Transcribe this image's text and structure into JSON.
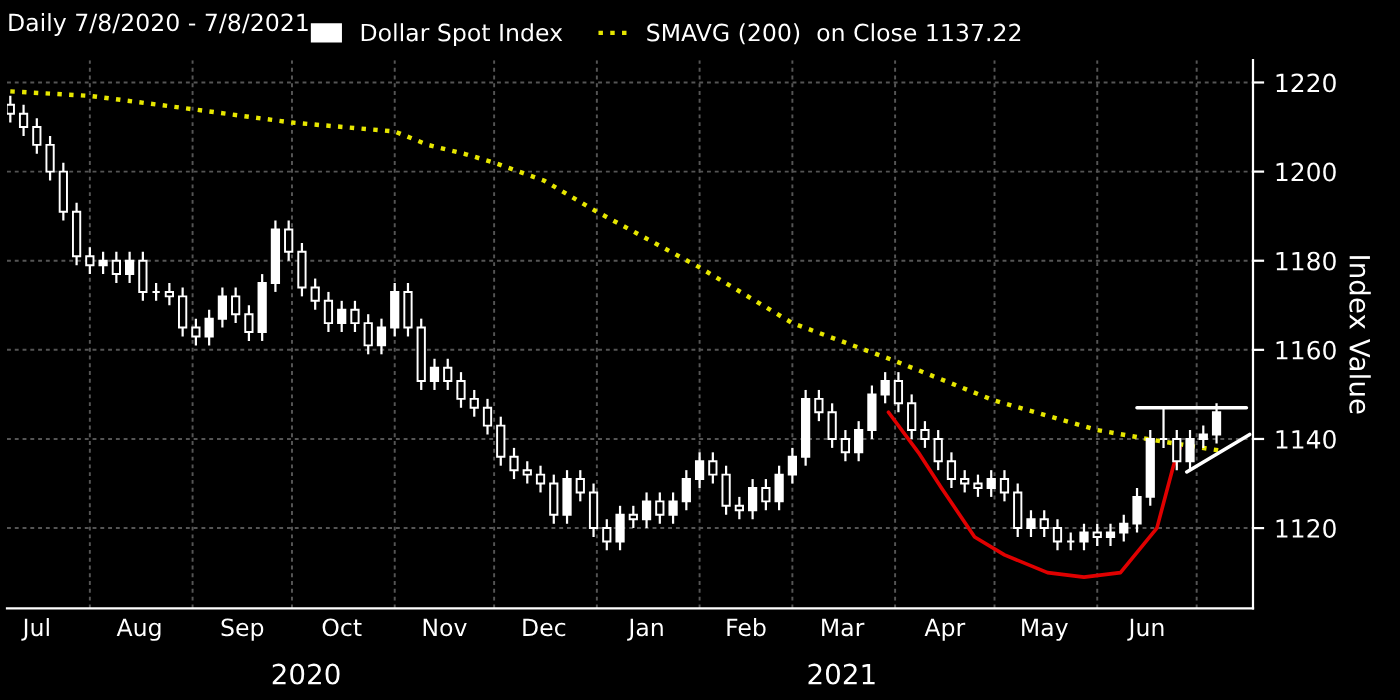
{
  "chart_data": {
    "type": "candlestick",
    "title": "Daily 7/8/2020 - 7/8/2021",
    "ylabel": "Index Value",
    "x": [
      "2020-07-08",
      "2020-07-12",
      "2020-07-16",
      "2020-07-20",
      "2020-07-24",
      "2020-07-28",
      "2020-08-01",
      "2020-08-05",
      "2020-08-09",
      "2020-08-13",
      "2020-08-17",
      "2020-08-21",
      "2020-08-25",
      "2020-08-29",
      "2020-09-02",
      "2020-09-06",
      "2020-09-10",
      "2020-09-14",
      "2020-09-18",
      "2020-09-22",
      "2020-09-26",
      "2020-09-30",
      "2020-10-04",
      "2020-10-08",
      "2020-10-12",
      "2020-10-16",
      "2020-10-20",
      "2020-10-24",
      "2020-10-28",
      "2020-11-01",
      "2020-11-05",
      "2020-11-09",
      "2020-11-13",
      "2020-11-17",
      "2020-11-21",
      "2020-11-25",
      "2020-11-29",
      "2020-12-03",
      "2020-12-07",
      "2020-12-11",
      "2020-12-15",
      "2020-12-19",
      "2020-12-23",
      "2020-12-27",
      "2020-12-31",
      "2021-01-04",
      "2021-01-08",
      "2021-01-12",
      "2021-01-16",
      "2021-01-20",
      "2021-01-24",
      "2021-01-28",
      "2021-02-01",
      "2021-02-05",
      "2021-02-09",
      "2021-02-13",
      "2021-02-17",
      "2021-02-21",
      "2021-02-25",
      "2021-03-01",
      "2021-03-05",
      "2021-03-09",
      "2021-03-13",
      "2021-03-17",
      "2021-03-21",
      "2021-03-25",
      "2021-03-29",
      "2021-04-02",
      "2021-04-06",
      "2021-04-10",
      "2021-04-14",
      "2021-04-18",
      "2021-04-22",
      "2021-04-26",
      "2021-04-30",
      "2021-05-04",
      "2021-05-08",
      "2021-05-12",
      "2021-05-16",
      "2021-05-20",
      "2021-05-24",
      "2021-05-28",
      "2021-06-01",
      "2021-06-05",
      "2021-06-09",
      "2021-06-13",
      "2021-06-17",
      "2021-06-21",
      "2021-06-25",
      "2021-06-29",
      "2021-07-03",
      "2021-07-07"
    ],
    "series": [
      {
        "name": "Dollar Spot Index",
        "color": "#ffffff",
        "ohlc": [
          [
            1215,
            1217,
            1211,
            1213
          ],
          [
            1213,
            1215,
            1208,
            1210
          ],
          [
            1210,
            1212,
            1204,
            1206
          ],
          [
            1206,
            1208,
            1198,
            1200
          ],
          [
            1200,
            1202,
            1189,
            1191
          ],
          [
            1191,
            1193,
            1179,
            1181
          ],
          [
            1181,
            1183,
            1177,
            1179
          ],
          [
            1179,
            1182,
            1177,
            1180
          ],
          [
            1180,
            1182,
            1175,
            1177
          ],
          [
            1177,
            1182,
            1175,
            1180
          ],
          [
            1180,
            1182,
            1171,
            1173
          ],
          [
            1173,
            1175,
            1171,
            1173
          ],
          [
            1173,
            1175,
            1170,
            1172
          ],
          [
            1172,
            1174,
            1163,
            1165
          ],
          [
            1165,
            1167,
            1161,
            1163
          ],
          [
            1163,
            1169,
            1161,
            1167
          ],
          [
            1167,
            1174,
            1165,
            1172
          ],
          [
            1172,
            1174,
            1166,
            1168
          ],
          [
            1168,
            1170,
            1162,
            1164
          ],
          [
            1164,
            1177,
            1162,
            1175
          ],
          [
            1175,
            1189,
            1173,
            1187
          ],
          [
            1187,
            1189,
            1180,
            1182
          ],
          [
            1182,
            1184,
            1172,
            1174
          ],
          [
            1174,
            1176,
            1169,
            1171
          ],
          [
            1171,
            1173,
            1164,
            1166
          ],
          [
            1166,
            1171,
            1164,
            1169
          ],
          [
            1169,
            1171,
            1164,
            1166
          ],
          [
            1166,
            1168,
            1159,
            1161
          ],
          [
            1161,
            1167,
            1159,
            1165
          ],
          [
            1165,
            1175,
            1163,
            1173
          ],
          [
            1173,
            1175,
            1163,
            1165
          ],
          [
            1165,
            1167,
            1151,
            1153
          ],
          [
            1153,
            1158,
            1151,
            1156
          ],
          [
            1156,
            1158,
            1151,
            1153
          ],
          [
            1153,
            1155,
            1147,
            1149
          ],
          [
            1149,
            1151,
            1145,
            1147
          ],
          [
            1147,
            1149,
            1141,
            1143
          ],
          [
            1143,
            1145,
            1134,
            1136
          ],
          [
            1136,
            1138,
            1131,
            1133
          ],
          [
            1133,
            1135,
            1130,
            1132
          ],
          [
            1132,
            1134,
            1128,
            1130
          ],
          [
            1130,
            1132,
            1121,
            1123
          ],
          [
            1123,
            1133,
            1121,
            1131
          ],
          [
            1131,
            1133,
            1126,
            1128
          ],
          [
            1128,
            1130,
            1118,
            1120
          ],
          [
            1120,
            1122,
            1115,
            1117
          ],
          [
            1117,
            1125,
            1115,
            1123
          ],
          [
            1123,
            1125,
            1120,
            1122
          ],
          [
            1122,
            1128,
            1120,
            1126
          ],
          [
            1126,
            1128,
            1121,
            1123
          ],
          [
            1123,
            1128,
            1121,
            1126
          ],
          [
            1126,
            1133,
            1124,
            1131
          ],
          [
            1131,
            1137,
            1129,
            1135
          ],
          [
            1135,
            1137,
            1130,
            1132
          ],
          [
            1132,
            1134,
            1123,
            1125
          ],
          [
            1125,
            1127,
            1122,
            1124
          ],
          [
            1124,
            1131,
            1122,
            1129
          ],
          [
            1129,
            1131,
            1124,
            1126
          ],
          [
            1126,
            1134,
            1124,
            1132
          ],
          [
            1132,
            1138,
            1130,
            1136
          ],
          [
            1136,
            1151,
            1134,
            1149
          ],
          [
            1149,
            1151,
            1144,
            1146
          ],
          [
            1146,
            1148,
            1138,
            1140
          ],
          [
            1140,
            1142,
            1135,
            1137
          ],
          [
            1137,
            1144,
            1135,
            1142
          ],
          [
            1142,
            1152,
            1140,
            1150
          ],
          [
            1150,
            1155,
            1148,
            1153
          ],
          [
            1153,
            1155,
            1146,
            1148
          ],
          [
            1148,
            1150,
            1140,
            1142
          ],
          [
            1142,
            1144,
            1138,
            1140
          ],
          [
            1140,
            1142,
            1133,
            1135
          ],
          [
            1135,
            1137,
            1129,
            1131
          ],
          [
            1131,
            1133,
            1128,
            1130
          ],
          [
            1130,
            1132,
            1127,
            1129
          ],
          [
            1129,
            1133,
            1127,
            1131
          ],
          [
            1131,
            1133,
            1126,
            1128
          ],
          [
            1128,
            1130,
            1118,
            1120
          ],
          [
            1120,
            1124,
            1118,
            1122
          ],
          [
            1122,
            1124,
            1118,
            1120
          ],
          [
            1120,
            1122,
            1115,
            1117
          ],
          [
            1117,
            1119,
            1115,
            1117
          ],
          [
            1117,
            1121,
            1115,
            1119
          ],
          [
            1119,
            1121,
            1116,
            1118
          ],
          [
            1118,
            1121,
            1116,
            1119
          ],
          [
            1119,
            1123,
            1117,
            1121
          ],
          [
            1121,
            1129,
            1119,
            1127
          ],
          [
            1127,
            1142,
            1125,
            1140
          ],
          [
            1140,
            1147,
            1138,
            1140
          ],
          [
            1140,
            1142,
            1133,
            1135
          ],
          [
            1135,
            1142,
            1133,
            1140
          ],
          [
            1140,
            1143,
            1138,
            1141
          ],
          [
            1141,
            1148,
            1139,
            1146
          ]
        ]
      },
      {
        "type": "line",
        "name": "SMAVG (200)  on Close 1137.22",
        "color": "#e6e600",
        "line_style": "dotted",
        "x": [
          "2020-07-08",
          "2020-08-01",
          "2020-09-01",
          "2020-10-01",
          "2020-11-01",
          "2020-11-11",
          "2020-11-22",
          "2020-12-01",
          "2020-12-16",
          "2021-01-01",
          "2021-02-01",
          "2021-03-01",
          "2021-04-01",
          "2021-05-01",
          "2021-06-01",
          "2021-06-20",
          "2021-07-08"
        ],
        "values": [
          1218,
          1217,
          1214,
          1211,
          1209,
          1206,
          1204,
          1202,
          1198,
          1191,
          1178.5,
          1166,
          1157.5,
          1148.6,
          1142,
          1139.5,
          1137.4
        ]
      },
      {
        "type": "line",
        "color": "#e00000",
        "line_style": "solid",
        "x": [
          "2021-03-30",
          "2021-04-08",
          "2021-04-15",
          "2021-04-25",
          "2021-05-04",
          "2021-05-17",
          "2021-05-28",
          "2021-06-08",
          "2021-06-19",
          "2021-06-24",
          "2021-06-26"
        ],
        "values": [
          1146,
          1137,
          1129,
          1118,
          1114,
          1110,
          1109,
          1110,
          1120,
          1134,
          1138
        ]
      },
      {
        "type": "line",
        "color": "#ffffff",
        "line_style": "solid",
        "x": [
          "2021-06-13",
          "2021-07-16"
        ],
        "values": [
          1147,
          1147
        ]
      },
      {
        "type": "line",
        "color": "#ffffff",
        "line_style": "solid",
        "x": [
          "2021-06-28",
          "2021-07-17"
        ],
        "values": [
          1132.6,
          1141
        ]
      }
    ],
    "xlim": [
      "2020-07-07",
      "2021-07-18"
    ],
    "xticks": [
      {
        "value": "2020-07-16",
        "label": "Jul"
      },
      {
        "value": "2020-08-01",
        "label": null
      },
      {
        "value": "2020-08-16",
        "label": "Aug"
      },
      {
        "value": "2020-09-01",
        "label": null
      },
      {
        "value": "2020-09-16",
        "label": "Sep"
      },
      {
        "value": "2020-10-01",
        "label": null
      },
      {
        "value": "2020-10-16",
        "label": "Oct"
      },
      {
        "value": "2020-11-01",
        "label": null
      },
      {
        "value": "2020-11-16",
        "label": "Nov"
      },
      {
        "value": "2020-12-01",
        "label": null
      },
      {
        "value": "2020-12-16",
        "label": "Dec"
      },
      {
        "value": "2021-01-01",
        "label": null
      },
      {
        "value": "2021-01-16",
        "label": "Jan"
      },
      {
        "value": "2021-02-01",
        "label": null
      },
      {
        "value": "2021-02-15",
        "label": "Feb"
      },
      {
        "value": "2021-03-01",
        "label": null
      },
      {
        "value": "2021-03-16",
        "label": "Mar"
      },
      {
        "value": "2021-04-01",
        "label": null
      },
      {
        "value": "2021-04-16",
        "label": "Apr"
      },
      {
        "value": "2021-05-01",
        "label": null
      },
      {
        "value": "2021-05-16",
        "label": "May"
      },
      {
        "value": "2021-06-01",
        "label": null
      },
      {
        "value": "2021-06-16",
        "label": "Jun"
      },
      {
        "value": "2021-07-01",
        "label": null
      }
    ],
    "ylim": [
      1102,
      1225
    ],
    "yticks": [
      1120,
      1140,
      1160,
      1180,
      1200,
      1220
    ],
    "grid": true,
    "legend": "top",
    "annotations": [
      "2020",
      "2021"
    ]
  }
}
